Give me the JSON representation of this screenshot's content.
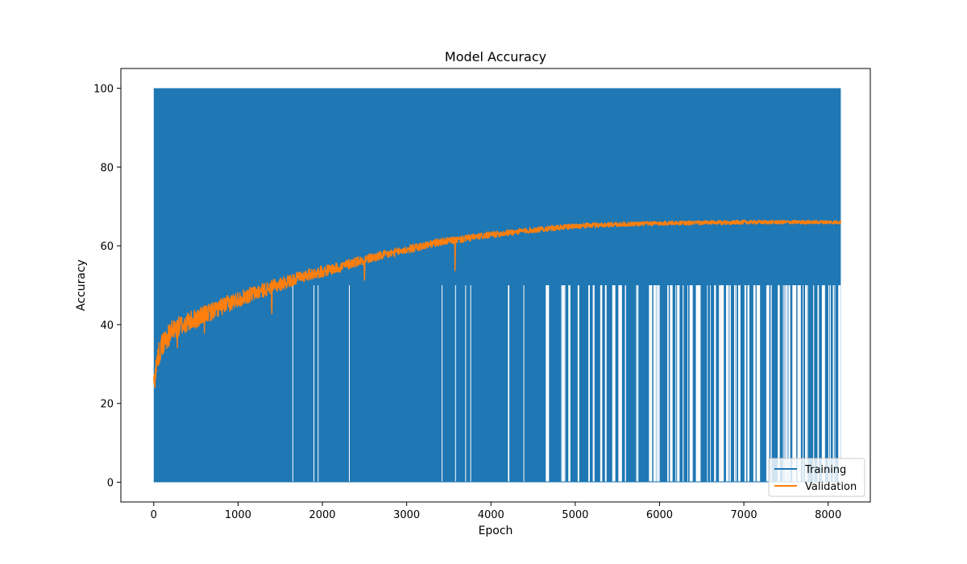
{
  "chart_data": {
    "type": "line",
    "title": "Model Accuracy",
    "xlabel": "Epoch",
    "ylabel": "Accuracy",
    "xlim": [
      -390,
      8500
    ],
    "ylim": [
      -5,
      105
    ],
    "x_ticks": [
      0,
      1000,
      2000,
      3000,
      4000,
      5000,
      6000,
      7000,
      8000
    ],
    "y_ticks": [
      0,
      20,
      40,
      60,
      80,
      100
    ],
    "legend_position": "lower-right",
    "grid": false,
    "series": [
      {
        "name": "Training",
        "color": "#1f77b4",
        "x_range": [
          0,
          8150
        ],
        "value_range": [
          0,
          100
        ],
        "dense_band": [
          0,
          100
        ],
        "secondary_level": 50,
        "notes": "Dense oscillation between 0 and 100 across all epochs; gaps where the minimum only reaches 50."
      },
      {
        "name": "Validation",
        "color": "#ff7f0e",
        "x": [
          0,
          50,
          100,
          200,
          300,
          400,
          500,
          600,
          700,
          800,
          900,
          1000,
          1200,
          1400,
          1600,
          1800,
          2000,
          2200,
          2400,
          2600,
          2800,
          3000,
          3200,
          3400,
          3600,
          3800,
          4000,
          4200,
          4400,
          4600,
          4800,
          5000,
          5200,
          5400,
          5600,
          5800,
          6000,
          6200,
          6400,
          6600,
          6800,
          7000,
          7200,
          7400,
          7600,
          7800,
          8000,
          8150
        ],
        "y": [
          25,
          32,
          35,
          38,
          39.5,
          40.5,
          41.5,
          42.5,
          43.5,
          44.5,
          45.5,
          46.5,
          48,
          49.5,
          51,
          52.5,
          53.5,
          54.5,
          56,
          57,
          58,
          59,
          60,
          61,
          61.5,
          62.2,
          62.8,
          63.3,
          63.8,
          64.2,
          64.6,
          65,
          65.2,
          65.4,
          65.5,
          65.6,
          65.7,
          65.8,
          65.8,
          65.9,
          65.9,
          66,
          66,
          66,
          66,
          66,
          66,
          66
        ]
      }
    ]
  }
}
